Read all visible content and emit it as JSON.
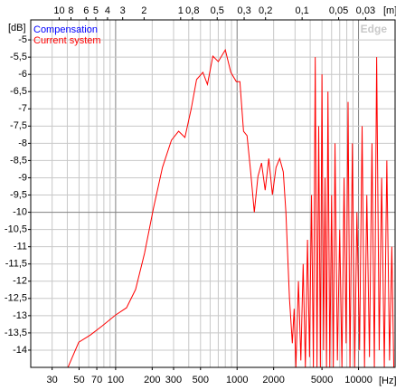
{
  "chart_data": {
    "type": "line",
    "y_label": "[dB]",
    "x_label": "[Hz]",
    "x2_label": "[m]",
    "watermark": "Edge",
    "log_x": true,
    "grid": true,
    "legend": "top-left",
    "xlim": [
      20,
      20000
    ],
    "ylim": [
      -14.5,
      -4.42
    ],
    "xticks": [
      30,
      50,
      70,
      100,
      200,
      300,
      500,
      1000,
      2000,
      5000,
      10000
    ],
    "x2ticks": [
      10,
      8,
      6,
      5,
      4,
      3,
      2,
      1,
      {
        "value": 0.8,
        "label": "0,8"
      },
      {
        "value": 0.5,
        "label": "0,5"
      },
      {
        "value": 0.3,
        "label": "0,3"
      },
      {
        "value": 0.2,
        "label": "0,2"
      },
      {
        "value": 0.1,
        "label": "0,1"
      },
      {
        "value": 0.05,
        "label": "0,05"
      },
      {
        "value": 0.03,
        "label": "0,03"
      }
    ],
    "yticks": [
      -5,
      {
        "value": -5.5,
        "label": "-5,5"
      },
      -6,
      {
        "value": -6.5,
        "label": "-6,5"
      },
      -7,
      {
        "value": -7.5,
        "label": "-7,5"
      },
      -8,
      {
        "value": -8.5,
        "label": "-8,5"
      },
      -9,
      {
        "value": -9.5,
        "label": "-9,5"
      },
      -10,
      {
        "value": -10.5,
        "label": "-10,5"
      },
      -11,
      {
        "value": -11.5,
        "label": "-11,5"
      },
      -12,
      {
        "value": -12.5,
        "label": "-12,5"
      },
      -13,
      {
        "value": -13.5,
        "label": "-13,5"
      },
      -14
    ],
    "series": [
      {
        "name": "Compensation",
        "color": "#0000ff",
        "x": [],
        "values": []
      },
      {
        "name": "Current system",
        "color": "#ff0000",
        "x": [
          40.5,
          49.7,
          62,
          77.4,
          100,
          123,
          146,
          173,
          205,
          243,
          288,
          330,
          372,
          419,
          464,
          523,
          570,
          632,
          700,
          800,
          888,
          985,
          1055,
          1130,
          1208,
          1294,
          1386,
          1485,
          1590,
          1703,
          1824,
          1954,
          2093,
          2242,
          2401,
          2523,
          2700,
          2850,
          2950,
          3050,
          3200,
          3350,
          3500,
          3650,
          3800,
          3950,
          4100,
          4250,
          4400,
          4550,
          4700,
          4850,
          5000,
          5150,
          5300,
          5450,
          5600,
          5800,
          6000,
          6200,
          6400,
          6700,
          7000,
          7300,
          7600,
          7900,
          8200,
          8500,
          8900,
          9300,
          9700,
          10200,
          10700,
          11200,
          11700,
          12300,
          12900,
          13500,
          14100,
          14800,
          15500,
          16300,
          17100,
          18000,
          18800,
          19500
        ],
        "values": [
          -14.5,
          -13.77,
          -13.56,
          -13.3,
          -12.98,
          -12.77,
          -12.24,
          -11.19,
          -9.88,
          -8.7,
          -7.91,
          -7.65,
          -7.83,
          -7.0,
          -6.15,
          -5.94,
          -6.29,
          -5.47,
          -5.63,
          -5.29,
          -5.94,
          -6.21,
          -6.21,
          -7.65,
          -7.78,
          -8.83,
          -10.0,
          -8.96,
          -8.57,
          -9.36,
          -8.44,
          -9.49,
          -8.7,
          -8.44,
          -8.83,
          -10.0,
          -12.5,
          -13.8,
          -12.8,
          -14.5,
          -12.0,
          -14.3,
          -11.5,
          -14.5,
          -10.8,
          -14.2,
          -9.5,
          -14.5,
          -5.5,
          -14.5,
          -7.5,
          -14.5,
          -6.0,
          -14.0,
          -9.0,
          -14.5,
          -6.5,
          -14.5,
          -9.5,
          -14.5,
          -8.0,
          -14.3,
          -10.5,
          -14.5,
          -9.0,
          -13.8,
          -6.8,
          -14.5,
          -8.0,
          -14.5,
          -10.0,
          -14.0,
          -7.5,
          -14.5,
          -9.5,
          -14.2,
          -8.0,
          -14.5,
          -5.5,
          -14.0,
          -9.0,
          -14.5,
          -8.5,
          -14.3,
          -11.0,
          -14.5
        ]
      }
    ]
  }
}
